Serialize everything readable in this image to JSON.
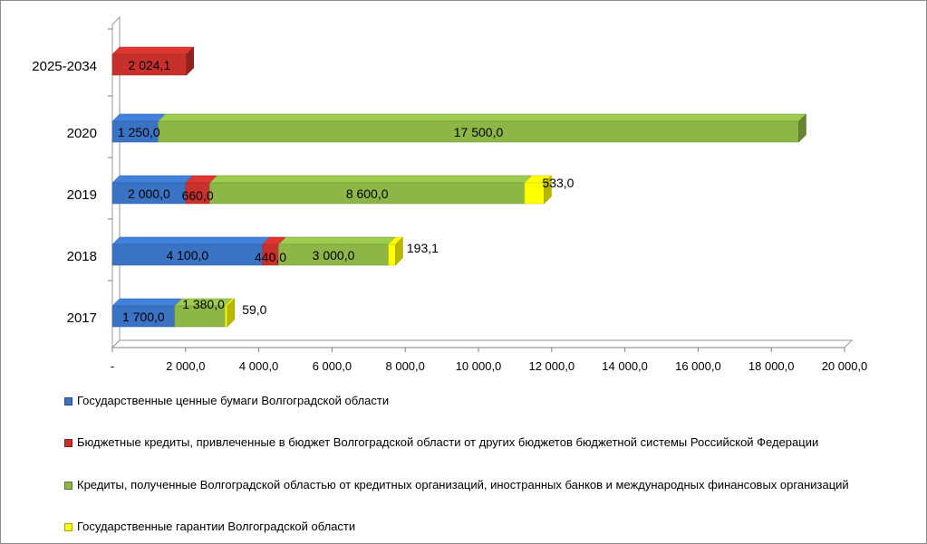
{
  "chart_data": {
    "type": "bar",
    "orientation": "horizontal",
    "stacked": true,
    "three_d": true,
    "categories": [
      "2017",
      "2018",
      "2019",
      "2020",
      "2025-2034"
    ],
    "series": [
      {
        "name": "Государственные ценные бумаги Волгоградской области",
        "color": "#3B73C4",
        "values": [
          1700.0,
          4100.0,
          2000.0,
          1250.0,
          null
        ],
        "labels": [
          "1 700,0",
          "4 100,0",
          "2 000,0",
          "1 250,0",
          ""
        ]
      },
      {
        "name": "Бюджетные кредиты, привлеченные в бюджет Волгоградской области от других бюджетов бюджетной системы Российской Федерации",
        "color": "#C8302C",
        "values": [
          null,
          440.0,
          660.0,
          null,
          2024.1
        ],
        "labels": [
          "",
          "440,0",
          "660,0",
          "",
          "2 024,1"
        ]
      },
      {
        "name": "Кредиты, полученные Волгоградской областью от кредитных организаций, иностранных банков и международных финансовых организаций",
        "color": "#8DB646",
        "values": [
          1380.0,
          3000.0,
          8600.0,
          17500.0,
          null
        ],
        "labels": [
          "1 380,0",
          "3 000,0",
          "8 600,0",
          "17 500,0",
          ""
        ]
      },
      {
        "name": "Государственные гарантии Волгоградской области",
        "color": "#FFFF00",
        "values": [
          59.0,
          193.1,
          533.0,
          null,
          null
        ],
        "labels": [
          "59,0",
          "193,1",
          "533,0",
          "",
          ""
        ]
      }
    ],
    "xlim": [
      0,
      20000
    ],
    "x_ticks": [
      0,
      2000,
      4000,
      6000,
      8000,
      10000,
      12000,
      14000,
      16000,
      18000,
      20000
    ],
    "x_tick_labels": [
      "-",
      "2 000,0",
      "4 000,0",
      "6 000,0",
      "8 000,0",
      "10 000,0",
      "12 000,0",
      "14 000,0",
      "16 000,0",
      "18 000,0",
      "20 000,0"
    ],
    "grid": false,
    "legend_position": "bottom",
    "title": "",
    "xlabel": "",
    "ylabel": ""
  }
}
